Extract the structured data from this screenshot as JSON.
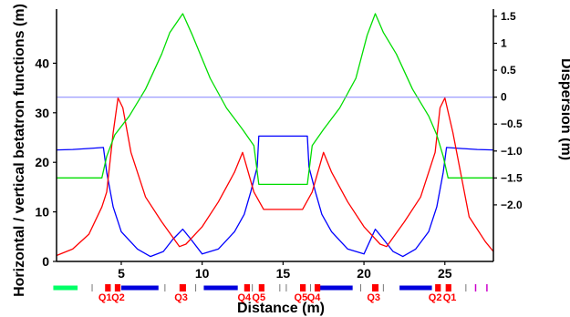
{
  "chart_data": {
    "type": "line",
    "xlabel": "Distance (m)",
    "ylabel": "Horizontal / vertical betatron functions (m)",
    "y2label": "Dispersion (m)",
    "xlim": [
      1,
      28
    ],
    "ylim": [
      0,
      50
    ],
    "y2lim": [
      -3.05,
      1.55
    ],
    "x_ticks": [
      "5",
      "10",
      "15",
      "20",
      "25"
    ],
    "y_ticks": [
      "0",
      "10",
      "20",
      "30",
      "40"
    ],
    "y2_ticks": [
      "1.5",
      "1",
      "0.5",
      "0",
      "−0.5",
      "−1.0",
      "−1.5",
      "−2.0"
    ],
    "y2_tick_values": [
      1.5,
      1,
      0.5,
      0,
      -0.5,
      -1.0,
      -1.5,
      -2.0
    ],
    "grid": false,
    "series": [
      {
        "color": "#0000ff",
        "axis": "left",
        "x": [
          1,
          2,
          3,
          3.9,
          4.1,
          4.5,
          5,
          6,
          6.8,
          7.6,
          8.2,
          8.8,
          9.3,
          10,
          11,
          12,
          12.6,
          13,
          13.4,
          13.5,
          14,
          14.5,
          15,
          15.5,
          16,
          16.5,
          16.6,
          17,
          17.4,
          18,
          19,
          20,
          20.7,
          21.2,
          21.8,
          22.4,
          23.2,
          24,
          24.5,
          24.9,
          25.1,
          26,
          27,
          28
        ],
        "y": [
          22.5,
          22.6,
          22.8,
          23,
          18,
          11,
          6,
          2.5,
          1,
          2,
          4.5,
          6.5,
          4.5,
          1.5,
          2.5,
          6,
          9.5,
          14,
          19,
          25.3,
          25.3,
          25.3,
          25.3,
          25.3,
          25.3,
          25.3,
          19,
          14,
          9.5,
          6,
          2.5,
          1.5,
          6.5,
          4.5,
          2,
          1,
          2.5,
          6,
          11,
          18,
          23,
          22.8,
          22.6,
          22.5
        ]
      },
      {
        "color": "#ff0000",
        "axis": "left",
        "x": [
          1,
          2,
          3,
          3.8,
          4.1,
          4.5,
          4.8,
          5.1,
          5.6,
          6.5,
          7.5,
          8.6,
          9,
          10,
          11,
          12,
          12.5,
          13.2,
          13.8,
          14.5,
          15,
          15.5,
          16.2,
          16.8,
          17.5,
          18,
          19,
          20,
          21,
          21.4,
          22.5,
          23.5,
          24.4,
          24.7,
          25,
          25.5,
          26.5,
          27.5,
          28
        ],
        "y": [
          1.2,
          2.5,
          5.5,
          11,
          14,
          26,
          33,
          31,
          22,
          13,
          8,
          3,
          3.5,
          7,
          12,
          18,
          22,
          14,
          10.5,
          10.5,
          10.5,
          10.5,
          10.5,
          14,
          22,
          18,
          12,
          7,
          3.5,
          3,
          8,
          13,
          22,
          31,
          33,
          26,
          9,
          4,
          2
        ]
      },
      {
        "color": "#00dd00",
        "axis": "right",
        "x": [
          1,
          2,
          3,
          3.8,
          4.1,
          4.6,
          5.5,
          6.5,
          7.5,
          8,
          8.8,
          9.4,
          10.5,
          11.5,
          12.5,
          13.2,
          13.5,
          14,
          15,
          16,
          16.5,
          16.8,
          17.5,
          18.5,
          19.5,
          20.2,
          20.7,
          21.2,
          22,
          23,
          24,
          24.5,
          24.9,
          25.2,
          26,
          27,
          28
        ],
        "y": [
          -1.5,
          -1.5,
          -1.5,
          -1.5,
          -1.1,
          -0.7,
          -0.35,
          0.15,
          0.8,
          1.2,
          1.55,
          1.15,
          0.35,
          -0.2,
          -0.6,
          -0.9,
          -1.62,
          -1.62,
          -1.62,
          -1.62,
          -1.62,
          -0.9,
          -0.6,
          -0.2,
          0.35,
          1.15,
          1.55,
          1.2,
          0.8,
          0.15,
          -0.35,
          -0.7,
          -1.1,
          -1.5,
          -1.5,
          -1.5,
          -1.5
        ]
      },
      {
        "color": "#8080ff",
        "axis": "right",
        "x": [
          1,
          28
        ],
        "y": [
          0,
          0
        ]
      }
    ],
    "lattice": {
      "labels": [
        {
          "text": "Q1",
          "x": 4.0
        },
        {
          "text": "Q2",
          "x": 4.8
        },
        {
          "text": "Q3",
          "x": 8.7
        },
        {
          "text": "Q4",
          "x": 12.6
        },
        {
          "text": "Q5",
          "x": 13.5
        },
        {
          "text": "Q5",
          "x": 16.1
        },
        {
          "text": "Q4",
          "x": 16.9
        },
        {
          "text": "Q3",
          "x": 20.6
        },
        {
          "text": "Q2",
          "x": 24.4
        },
        {
          "text": "Q1",
          "x": 25.3
        }
      ],
      "elements": [
        {
          "kind": "green",
          "x0": 0.8,
          "x1": 2.3
        },
        {
          "kind": "blue",
          "x0": 5.0,
          "x1": 7.3
        },
        {
          "kind": "blue",
          "x0": 10.1,
          "x1": 12.2
        },
        {
          "kind": "blue",
          "x0": 17.2,
          "x1": 19.3
        },
        {
          "kind": "blue",
          "x0": 22.2,
          "x1": 24.2
        },
        {
          "kind": "red",
          "x0": 4.0,
          "x1": 4.35
        },
        {
          "kind": "red",
          "x0": 4.6,
          "x1": 4.95
        },
        {
          "kind": "red",
          "x0": 8.6,
          "x1": 9.0
        },
        {
          "kind": "red",
          "x0": 12.6,
          "x1": 12.95
        },
        {
          "kind": "red",
          "x0": 13.5,
          "x1": 13.85
        },
        {
          "kind": "red",
          "x0": 16.05,
          "x1": 16.4
        },
        {
          "kind": "red",
          "x0": 16.95,
          "x1": 17.3
        },
        {
          "kind": "red",
          "x0": 20.5,
          "x1": 20.9
        },
        {
          "kind": "red",
          "x0": 24.4,
          "x1": 24.75
        },
        {
          "kind": "red",
          "x0": 25.05,
          "x1": 25.4
        },
        {
          "kind": "tick",
          "x": 3.2
        },
        {
          "kind": "tick",
          "x": 7.7
        },
        {
          "kind": "tick",
          "x": 9.6
        },
        {
          "kind": "tick",
          "x": 13.1
        },
        {
          "kind": "tick",
          "x": 14.8
        },
        {
          "kind": "tick",
          "x": 15.2
        },
        {
          "kind": "tick",
          "x": 16.7
        },
        {
          "kind": "tick",
          "x": 19.8
        },
        {
          "kind": "tick",
          "x": 21.2
        },
        {
          "kind": "tick",
          "x": 26.3
        },
        {
          "kind": "magenta",
          "x": 26.9
        },
        {
          "kind": "magenta",
          "x": 27.6
        }
      ]
    }
  }
}
